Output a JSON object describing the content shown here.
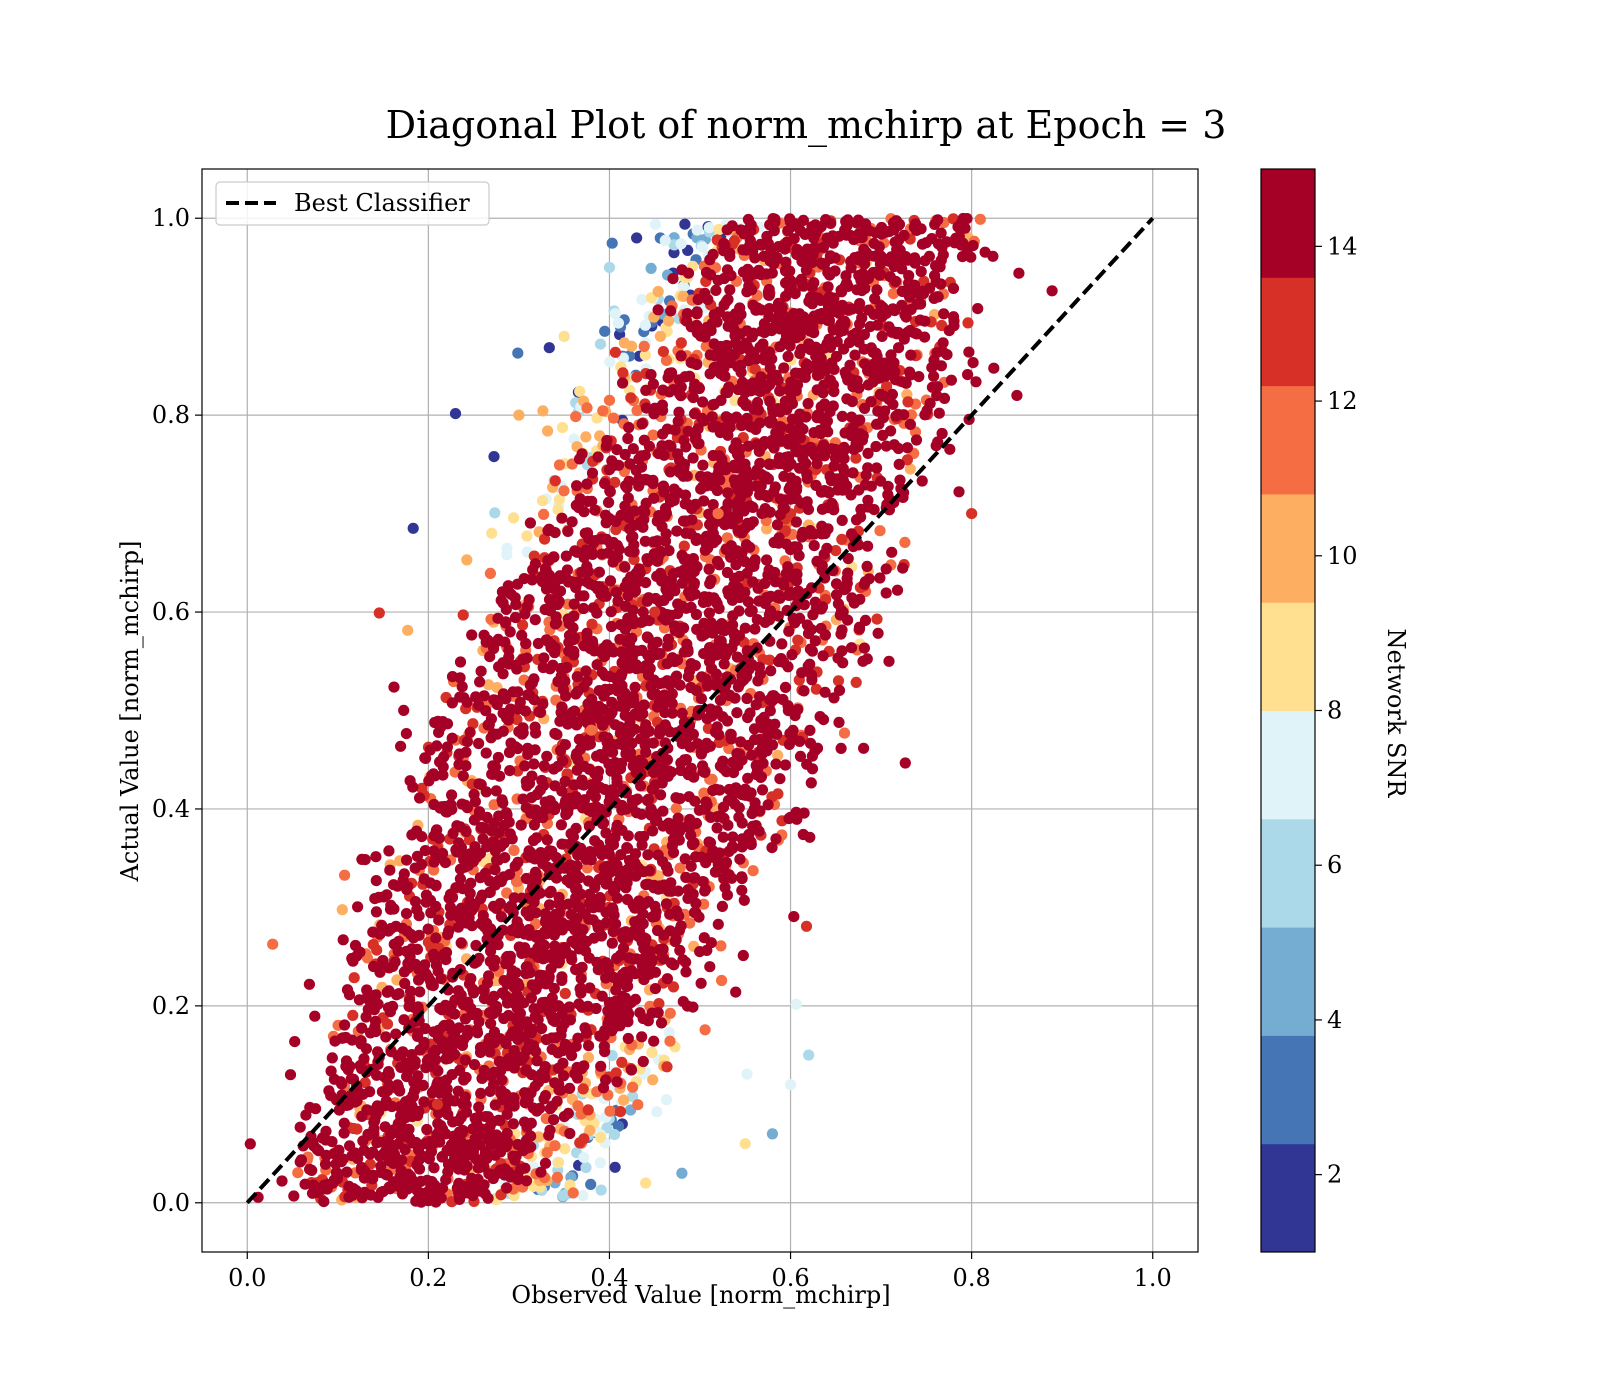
{
  "chart_data": {
    "type": "scatter",
    "title": "Diagonal Plot of norm_mchirp at Epoch = 3",
    "xlabel": "Observed Value [norm_mchirp]",
    "ylabel": "Actual Value [norm_mchirp]",
    "xlim": [
      -0.05,
      1.05
    ],
    "ylim": [
      -0.05,
      1.05
    ],
    "xticks": [
      0.0,
      0.2,
      0.4,
      0.6,
      0.8,
      1.0
    ],
    "yticks": [
      0.0,
      0.2,
      0.4,
      0.6,
      0.8,
      1.0
    ],
    "xtick_labels": [
      "0.0",
      "0.2",
      "0.4",
      "0.6",
      "0.8",
      "1.0"
    ],
    "ytick_labels": [
      "0.0",
      "0.2",
      "0.4",
      "0.6",
      "0.8",
      "1.0"
    ],
    "grid": true,
    "legend": {
      "placement": "upper-left",
      "entries": [
        "Best Classifier"
      ]
    },
    "reference_line": {
      "name": "Best Classifier",
      "style": "dashed",
      "color": "#000000",
      "x": [
        0.0,
        1.0
      ],
      "y": [
        0.0,
        1.0
      ]
    },
    "colorbar": {
      "label": "Network SNR",
      "range": [
        1,
        15
      ],
      "ticks": [
        2,
        4,
        6,
        8,
        10,
        12,
        14
      ],
      "tick_labels": [
        "2",
        "4",
        "6",
        "8",
        "10",
        "12",
        "14"
      ],
      "colors": [
        "#313695",
        "#4575b4",
        "#74add1",
        "#abd9e9",
        "#e0f3f8",
        "#fee090",
        "#fdae61",
        "#f46d43",
        "#d73027",
        "#a50026"
      ]
    },
    "point_cloud": {
      "description_of_density": "dense band from about (0.17, 0.0) to (0.85, 1.0); upper-left edge low SNR, center high SNR",
      "sample_points": [
        [
          0.18,
          0.18,
          14
        ],
        [
          0.21,
          0.1,
          13
        ],
        [
          0.25,
          0.3,
          15
        ],
        [
          0.3,
          0.22,
          14
        ],
        [
          0.33,
          0.4,
          15
        ],
        [
          0.38,
          0.48,
          12
        ],
        [
          0.42,
          0.36,
          15
        ],
        [
          0.45,
          0.6,
          13
        ],
        [
          0.5,
          0.5,
          15
        ],
        [
          0.52,
          0.7,
          11
        ],
        [
          0.55,
          0.42,
          15
        ],
        [
          0.6,
          0.62,
          15
        ],
        [
          0.63,
          0.8,
          14
        ],
        [
          0.68,
          0.55,
          15
        ],
        [
          0.72,
          0.75,
          15
        ],
        [
          0.78,
          0.9,
          14
        ],
        [
          0.8,
          0.7,
          13
        ],
        [
          0.85,
          0.82,
          14
        ],
        [
          0.43,
          0.98,
          2
        ],
        [
          0.4,
          0.95,
          6
        ],
        [
          0.35,
          0.88,
          9
        ],
        [
          0.3,
          0.8,
          10
        ],
        [
          0.27,
          0.68,
          9
        ],
        [
          0.58,
          0.07,
          5
        ],
        [
          0.6,
          0.12,
          7
        ],
        [
          0.55,
          0.06,
          9
        ],
        [
          0.48,
          0.03,
          5
        ],
        [
          0.44,
          0.02,
          8
        ],
        [
          0.62,
          0.15,
          6
        ],
        [
          0.36,
          0.01,
          12
        ]
      ]
    }
  }
}
